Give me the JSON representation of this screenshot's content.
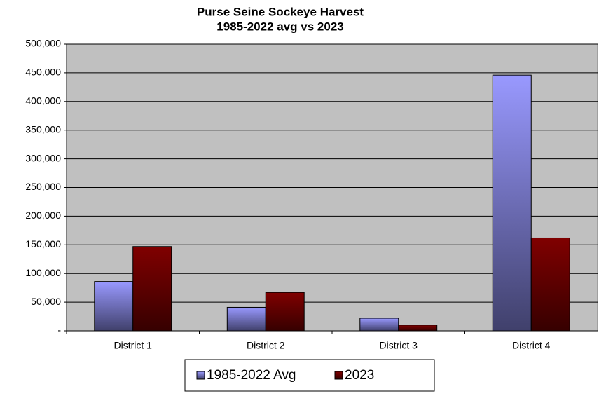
{
  "chart_data": {
    "type": "bar",
    "title": [
      "Purse Seine Sockeye Harvest",
      "1985-2022 avg vs 2023"
    ],
    "categories": [
      "District 1",
      "District 2",
      "District 3",
      "District 4"
    ],
    "series": [
      {
        "name": "1985-2022 Avg",
        "color": "#9999ff",
        "values": [
          86000,
          41000,
          22000,
          446000
        ]
      },
      {
        "name": "2023",
        "color": "#800000",
        "values": [
          147000,
          67000,
          10000,
          162000
        ]
      }
    ],
    "ylim": [
      0,
      500000
    ],
    "yticks": [
      {
        "value": 0,
        "label": "-"
      },
      {
        "value": 50000,
        "label": "50,000"
      },
      {
        "value": 100000,
        "label": "100,000"
      },
      {
        "value": 150000,
        "label": "150,000"
      },
      {
        "value": 200000,
        "label": "200,000"
      },
      {
        "value": 250000,
        "label": "250,000"
      },
      {
        "value": 300000,
        "label": "300,000"
      },
      {
        "value": 350000,
        "label": "350,000"
      },
      {
        "value": 400000,
        "label": "400,000"
      },
      {
        "value": 450000,
        "label": "450,000"
      },
      {
        "value": 500000,
        "label": "500,000"
      }
    ],
    "grid": true
  }
}
